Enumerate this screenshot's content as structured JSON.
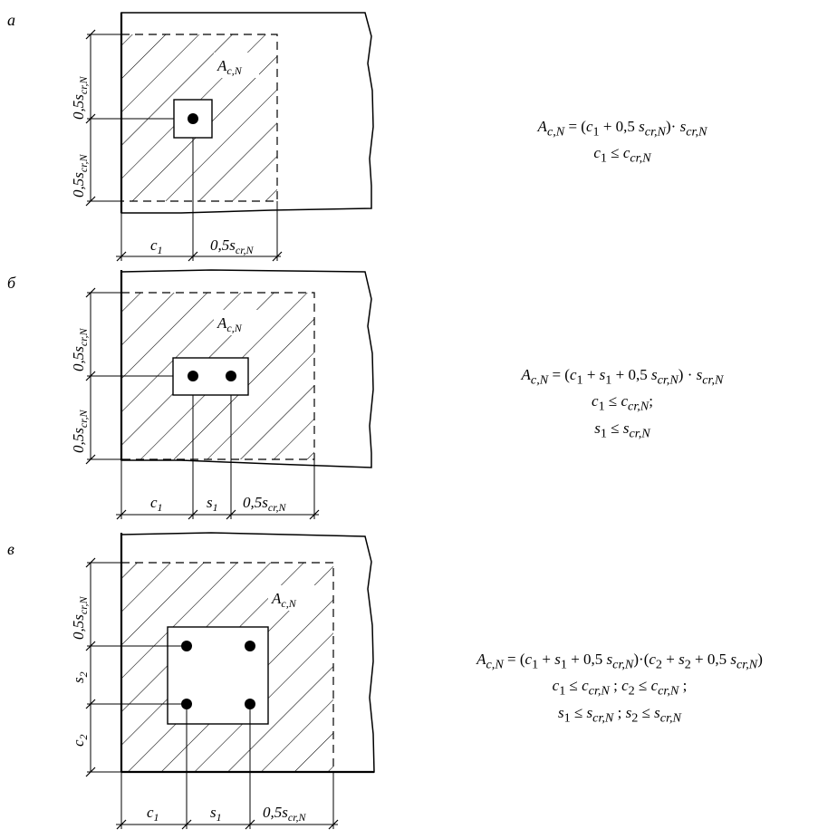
{
  "panels": [
    {
      "letter": "а",
      "area_label": "A",
      "area_sub": "c,N",
      "dims_left": [
        "0,5s",
        "0,5s"
      ],
      "dims_bottom": [
        "c",
        "0,5s"
      ],
      "formula": [
        "A_{c,N} = (c₁ + 0,5 s_{cr,N})· s_{cr,N}",
        "c₁ ≤ c_{cr,N}"
      ]
    },
    {
      "letter": "б",
      "formula": [
        "A_{c,N} = (c₁ + s₁ + 0,5 s_{cr,N}) · s_{cr,N}",
        "c₁ ≤ c_{cr,N};",
        "s₁ ≤ s_{cr,N}"
      ]
    },
    {
      "letter": "в",
      "formula": [
        "A_{c,N} = (c₁ + s₁ + 0,5 s_{cr,N})·(c₂ + s₂ + 0,5 s_{cr,N})",
        "c₁ ≤ c_{cr,N} ; c₂ ≤ c_{cr,N} ;",
        "s₁ ≤ s_{cr,N} ; s₂ ≤ s_{cr,N}"
      ]
    }
  ],
  "labels": {
    "half_s": "0,5s",
    "cr_n": "cr,N",
    "c": "c",
    "s": "s",
    "one": "1",
    "two": "2",
    "A": "A",
    "cN": "c,N"
  }
}
